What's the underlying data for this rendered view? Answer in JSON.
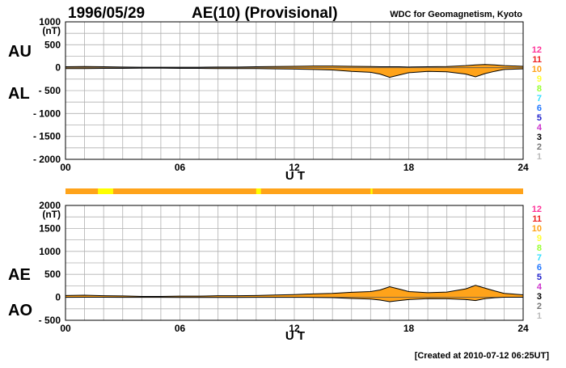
{
  "header": {
    "date": "1996/05/29",
    "title": "AE(10) (Provisional)",
    "source": "WDC for Geomagnetism, Kyoto"
  },
  "footer": {
    "created": "[Created at 2010-07-12 06:25UT]"
  },
  "colors": {
    "fill": "#ffa31a",
    "line": "#000000",
    "grid": "#b0b0b0",
    "ribbon_base": "#ffa31a",
    "ribbon_highlight": "#ffff00"
  },
  "station_legend": [
    {
      "label": "12",
      "color": "#ff3399"
    },
    {
      "label": "11",
      "color": "#ee2222"
    },
    {
      "label": "10",
      "color": "#ffa31a"
    },
    {
      "label": "9",
      "color": "#ffff33"
    },
    {
      "label": "8",
      "color": "#99ff33"
    },
    {
      "label": "7",
      "color": "#33ddff"
    },
    {
      "label": "6",
      "color": "#2277ff"
    },
    {
      "label": "5",
      "color": "#2222cc"
    },
    {
      "label": "4",
      "color": "#cc33cc"
    },
    {
      "label": "3",
      "color": "#000000"
    },
    {
      "label": "2",
      "color": "#777777"
    },
    {
      "label": "1",
      "color": "#bbbbbb"
    }
  ],
  "ribbon": {
    "base": "10",
    "segments": [
      {
        "start": 1.7,
        "end": 2.5,
        "stations": "9"
      },
      {
        "start": 10.0,
        "end": 10.25,
        "stations": "9"
      },
      {
        "start": 16.0,
        "end": 16.1,
        "stations": "9"
      }
    ]
  },
  "chart_data": [
    {
      "type": "area",
      "panel": "AU/AL",
      "upper_label": "AU",
      "lower_label": "AL",
      "unit": "(nT)",
      "xlabel": "U T",
      "xlim": [
        0,
        24
      ],
      "ylim": [
        -2000,
        1000
      ],
      "xticks": [
        "00",
        "06",
        "12",
        "18",
        "24"
      ],
      "yticks": [
        "1000",
        "500",
        "0",
        "- 500",
        "- 1000",
        "- 1500",
        "- 2000"
      ],
      "x": [
        0,
        1,
        2,
        3,
        4,
        5,
        6,
        7,
        8,
        9,
        10,
        11,
        12,
        13,
        14,
        15,
        16,
        16.5,
        17,
        17.5,
        18,
        19,
        20,
        21,
        21.5,
        22,
        22.5,
        23,
        24
      ],
      "series": [
        {
          "name": "AU",
          "values": [
            20,
            25,
            20,
            15,
            10,
            10,
            10,
            10,
            15,
            15,
            20,
            25,
            30,
            35,
            35,
            30,
            25,
            20,
            20,
            20,
            15,
            20,
            25,
            45,
            60,
            70,
            60,
            45,
            30
          ]
        },
        {
          "name": "AL",
          "values": [
            -20,
            -20,
            -15,
            -15,
            -10,
            -10,
            -15,
            -15,
            -20,
            -20,
            -20,
            -25,
            -30,
            -40,
            -50,
            -80,
            -100,
            -140,
            -210,
            -160,
            -110,
            -80,
            -90,
            -140,
            -200,
            -130,
            -80,
            -40,
            -25
          ]
        }
      ]
    },
    {
      "type": "area",
      "panel": "AE/AO",
      "upper_label": "AE",
      "lower_label": "AO",
      "unit": "(nT)",
      "xlabel": "U T",
      "xlim": [
        0,
        24
      ],
      "ylim": [
        -500,
        2000
      ],
      "xticks": [
        "00",
        "06",
        "12",
        "18",
        "24"
      ],
      "yticks": [
        "2000",
        "1500",
        "1000",
        "500",
        "0",
        "- 500"
      ],
      "x": [
        0,
        1,
        2,
        3,
        4,
        5,
        6,
        7,
        8,
        9,
        10,
        11,
        12,
        13,
        14,
        15,
        16,
        16.5,
        17,
        17.5,
        18,
        19,
        20,
        21,
        21.5,
        22,
        22.5,
        23,
        24
      ],
      "series": [
        {
          "name": "AE",
          "values": [
            40,
            45,
            35,
            30,
            20,
            20,
            25,
            25,
            35,
            35,
            40,
            50,
            60,
            75,
            85,
            110,
            125,
            160,
            230,
            180,
            125,
            100,
            115,
            185,
            260,
            200,
            140,
            85,
            55
          ]
        },
        {
          "name": "AO",
          "values": [
            0,
            2,
            2,
            0,
            0,
            0,
            -2,
            -2,
            -2,
            -2,
            0,
            0,
            0,
            -2,
            -8,
            -25,
            -38,
            -60,
            -95,
            -70,
            -48,
            -30,
            -32,
            -48,
            -70,
            -30,
            -10,
            2,
            2
          ]
        }
      ]
    }
  ]
}
